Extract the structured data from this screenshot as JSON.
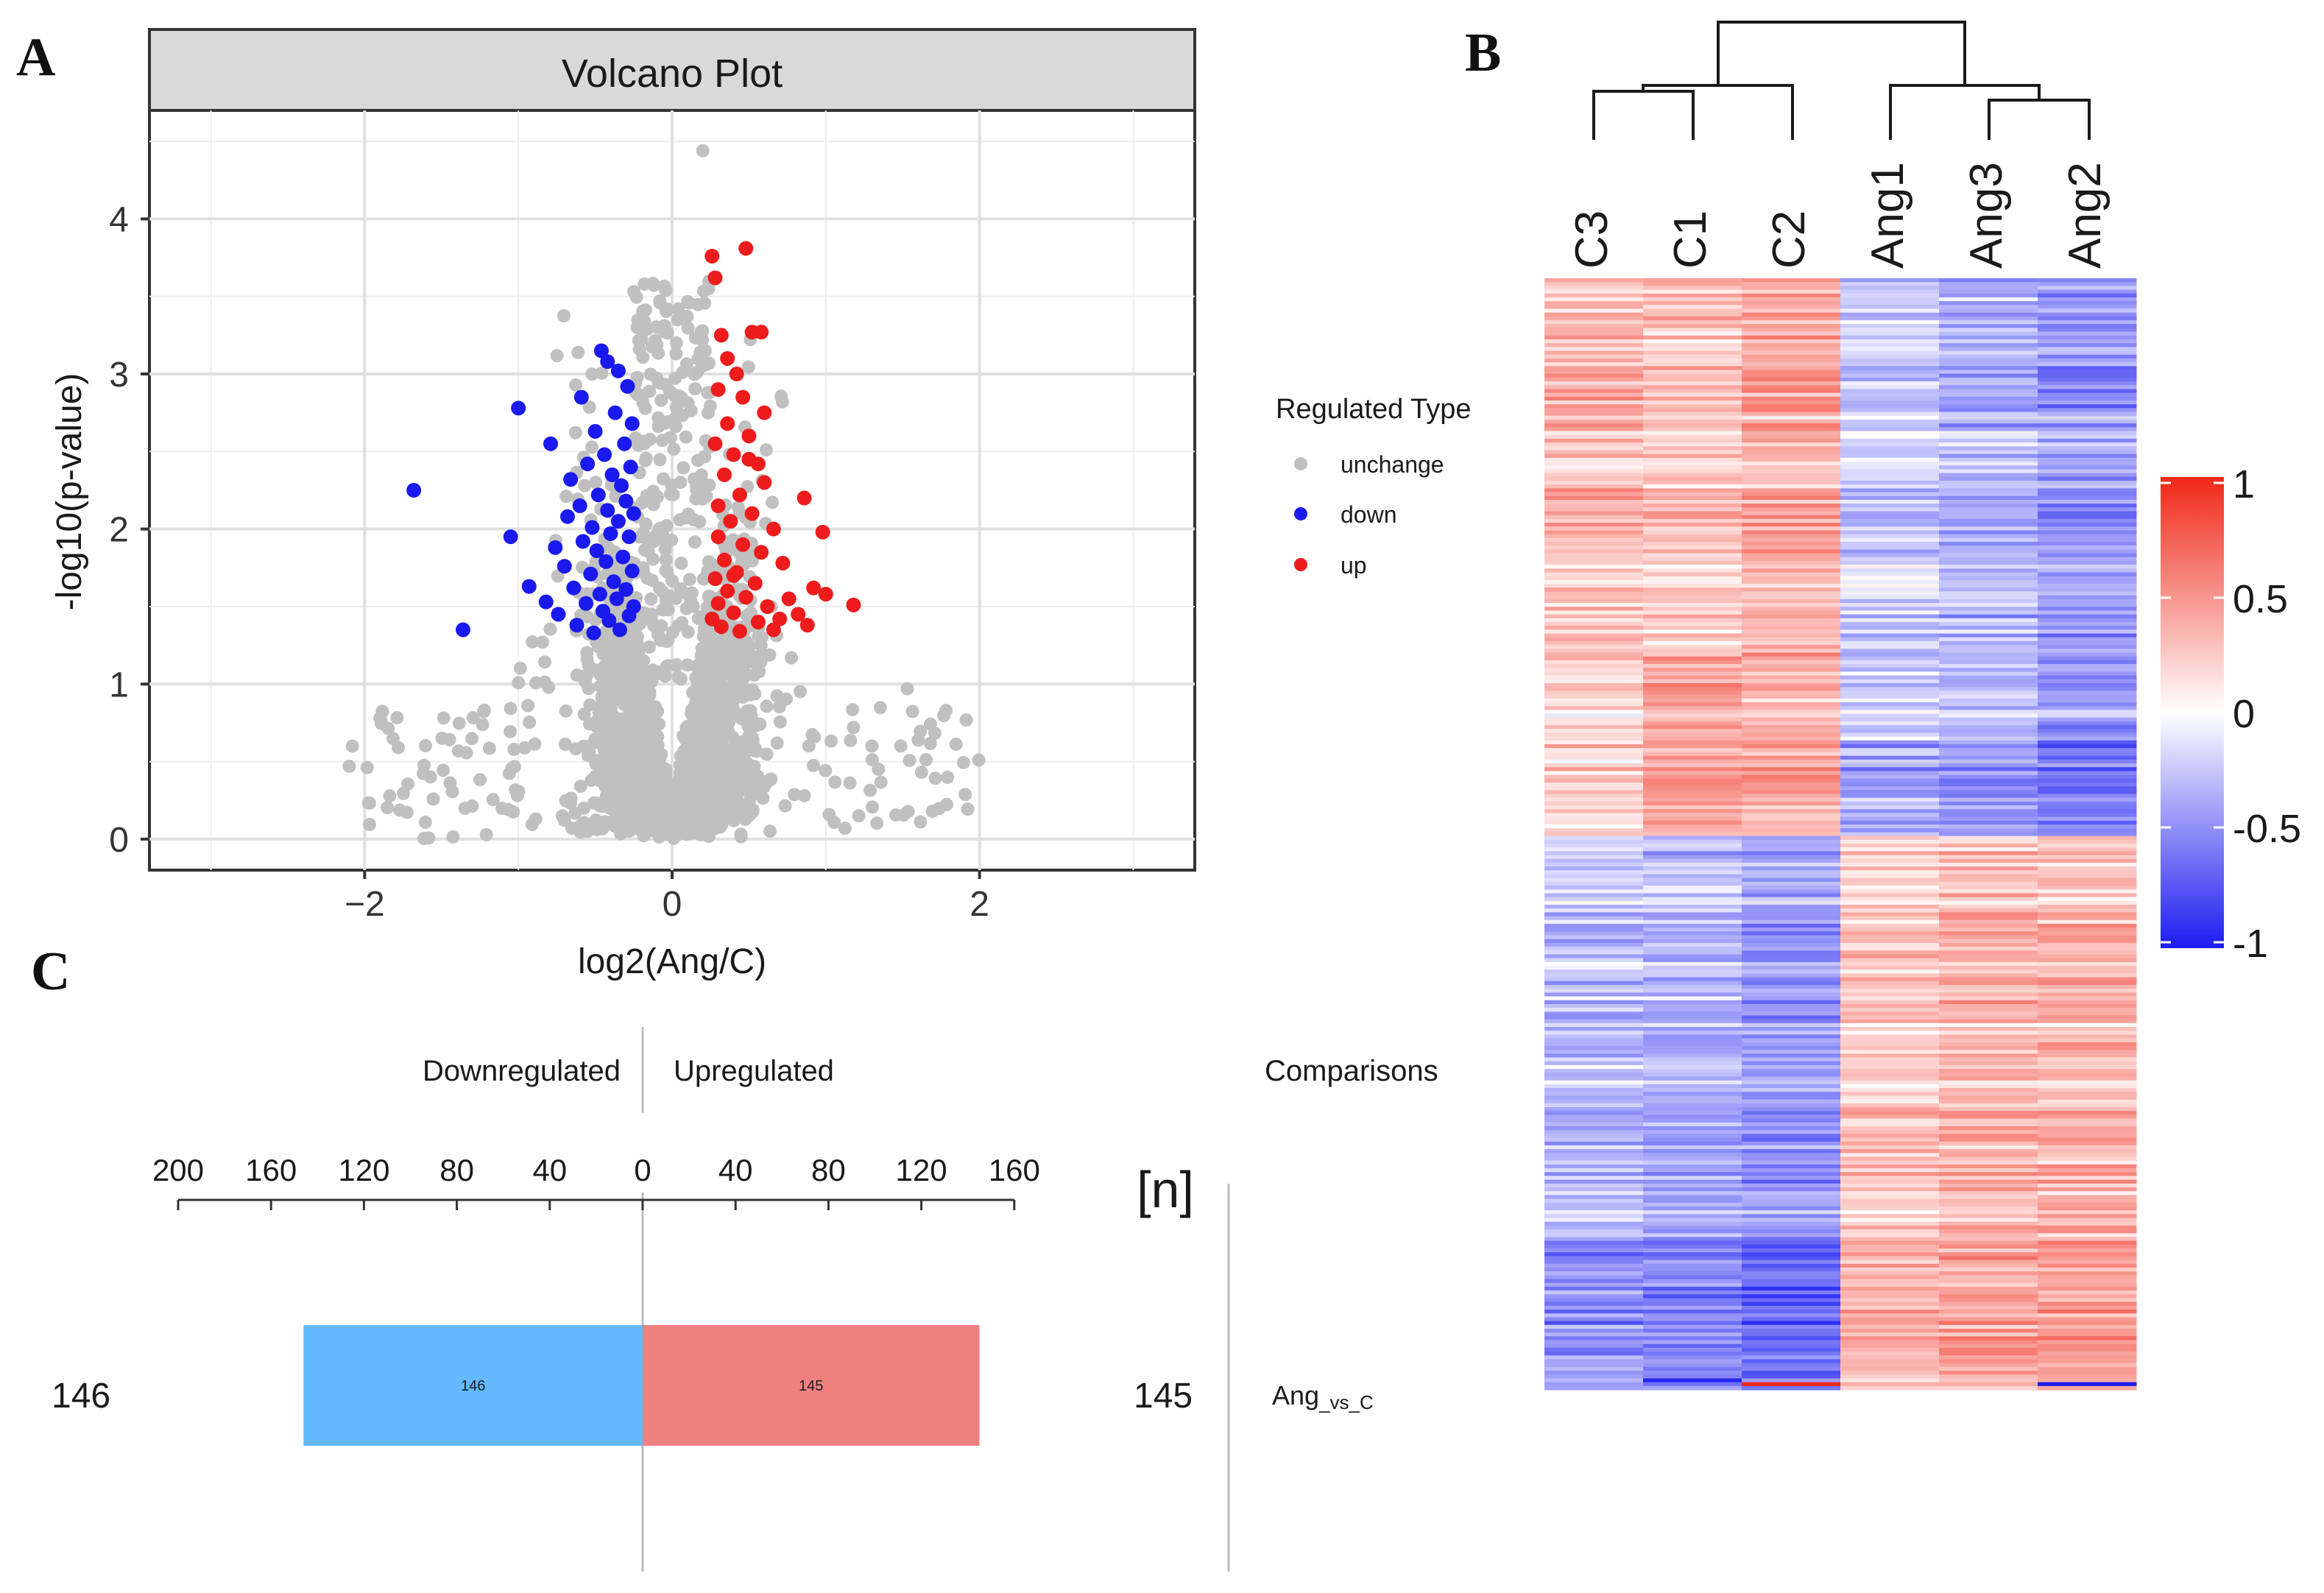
{
  "panels": {
    "a": "A",
    "b": "B",
    "c": "C"
  },
  "chart_data": [
    {
      "type": "scatter",
      "panel": "A",
      "title": "Volcano Plot",
      "xlabel": "log2(Ang/C)",
      "ylabel": "-log10(p-value)",
      "xlim": [
        -3.4,
        3.4
      ],
      "ylim": [
        -0.2,
        4.7
      ],
      "xticks": [
        -2,
        0,
        2
      ],
      "yticks": [
        0,
        1,
        2,
        3,
        4
      ],
      "legend": {
        "title": "Regulated Type",
        "placement": "right",
        "entries": [
          {
            "label": "unchange",
            "color": "#c0c0c0"
          },
          {
            "label": "down",
            "color": "#1a1aee"
          },
          {
            "label": "up",
            "color": "#ee1c1c"
          }
        ]
      },
      "series": [
        {
          "name": "down",
          "color": "#1a1aee",
          "points": [
            [
              -1.68,
              2.25
            ],
            [
              -1.36,
              1.35
            ],
            [
              -1.05,
              1.95
            ],
            [
              -1.0,
              2.78
            ],
            [
              -0.93,
              1.63
            ],
            [
              -0.82,
              1.53
            ],
            [
              -0.79,
              2.55
            ],
            [
              -0.76,
              1.88
            ],
            [
              -0.74,
              1.45
            ],
            [
              -0.7,
              1.76
            ],
            [
              -0.68,
              2.08
            ],
            [
              -0.66,
              2.32
            ],
            [
              -0.64,
              1.62
            ],
            [
              -0.62,
              1.38
            ],
            [
              -0.6,
              2.15
            ],
            [
              -0.59,
              2.85
            ],
            [
              -0.58,
              1.92
            ],
            [
              -0.56,
              1.52
            ],
            [
              -0.55,
              2.42
            ],
            [
              -0.53,
              1.71
            ],
            [
              -0.52,
              2.01
            ],
            [
              -0.51,
              1.33
            ],
            [
              -0.5,
              2.63
            ],
            [
              -0.49,
              1.86
            ],
            [
              -0.48,
              2.22
            ],
            [
              -0.47,
              1.58
            ],
            [
              -0.46,
              3.15
            ],
            [
              -0.45,
              1.47
            ],
            [
              -0.44,
              2.48
            ],
            [
              -0.43,
              1.79
            ],
            [
              -0.42,
              2.12
            ],
            [
              -0.42,
              3.08
            ],
            [
              -0.41,
              1.41
            ],
            [
              -0.4,
              1.97
            ],
            [
              -0.39,
              2.35
            ],
            [
              -0.38,
              1.66
            ],
            [
              -0.37,
              2.75
            ],
            [
              -0.36,
              1.55
            ],
            [
              -0.35,
              2.05
            ],
            [
              -0.35,
              3.02
            ],
            [
              -0.34,
              1.35
            ],
            [
              -0.33,
              2.28
            ],
            [
              -0.32,
              1.82
            ],
            [
              -0.31,
              2.55
            ],
            [
              -0.3,
              1.61
            ],
            [
              -0.3,
              2.18
            ],
            [
              -0.29,
              2.92
            ],
            [
              -0.28,
              1.44
            ],
            [
              -0.28,
              1.95
            ],
            [
              -0.27,
              2.4
            ],
            [
              -0.26,
              1.73
            ],
            [
              -0.26,
              2.68
            ],
            [
              -0.25,
              1.5
            ],
            [
              -0.25,
              2.1
            ]
          ]
        },
        {
          "name": "up",
          "color": "#ee1c1c",
          "points": [
            [
              0.26,
              3.76
            ],
            [
              0.28,
              3.62
            ],
            [
              0.48,
              3.81
            ],
            [
              0.32,
              3.25
            ],
            [
              0.52,
              3.27
            ],
            [
              0.58,
              3.27
            ],
            [
              0.42,
              3.0
            ],
            [
              0.3,
              2.9
            ],
            [
              0.46,
              2.85
            ],
            [
              0.36,
              2.68
            ],
            [
              0.5,
              2.6
            ],
            [
              0.28,
              2.55
            ],
            [
              0.4,
              2.48
            ],
            [
              0.56,
              2.42
            ],
            [
              0.34,
              2.35
            ],
            [
              0.6,
              2.3
            ],
            [
              0.44,
              2.22
            ],
            [
              0.3,
              2.15
            ],
            [
              0.52,
              2.1
            ],
            [
              0.38,
              2.05
            ],
            [
              0.66,
              2.0
            ],
            [
              0.3,
              1.95
            ],
            [
              0.46,
              1.9
            ],
            [
              0.58,
              1.85
            ],
            [
              0.34,
              1.8
            ],
            [
              0.72,
              1.78
            ],
            [
              0.42,
              1.72
            ],
            [
              0.28,
              1.68
            ],
            [
              0.54,
              1.65
            ],
            [
              0.36,
              1.6
            ],
            [
              0.48,
              1.56
            ],
            [
              0.3,
              1.52
            ],
            [
              0.62,
              1.5
            ],
            [
              0.4,
              1.46
            ],
            [
              0.26,
              1.42
            ],
            [
              0.56,
              1.4
            ],
            [
              0.32,
              1.37
            ],
            [
              0.44,
              1.34
            ],
            [
              0.6,
              2.75
            ],
            [
              0.86,
              2.2
            ],
            [
              0.98,
              1.98
            ],
            [
              0.92,
              1.62
            ],
            [
              1.18,
              1.51
            ],
            [
              1.0,
              1.58
            ],
            [
              0.82,
              1.45
            ],
            [
              0.76,
              1.55
            ],
            [
              0.7,
              1.42
            ],
            [
              0.88,
              1.38
            ],
            [
              0.66,
              1.35
            ],
            [
              0.36,
              3.1
            ],
            [
              0.5,
              2.45
            ],
            [
              0.4,
              1.7
            ]
          ]
        }
      ]
    },
    {
      "type": "heatmap",
      "panel": "B",
      "columns": [
        "C3",
        "C1",
        "C2",
        "Ang1",
        "Ang3",
        "Ang2"
      ],
      "dendrogram_order": [
        [
          "C3",
          "C1",
          "C2"
        ],
        [
          "Ang1",
          [
            "Ang3",
            "Ang2"
          ]
        ]
      ],
      "row_clusters": [
        "higher in C (upper block)",
        "higher in Ang (lower block)"
      ],
      "colorbar": {
        "ticks": [
          "1",
          "0.5",
          "0",
          "-0.5",
          "-1"
        ],
        "min": -1,
        "max": 1,
        "low_color": "#1c1cf0",
        "mid_color": "#ffffff",
        "high_color": "#f02818"
      }
    },
    {
      "type": "bar",
      "panel": "C",
      "orientation": "horizontal-diverging",
      "header_left": "Downregulated",
      "header_right": "Upregulated",
      "header_comparisons": "Comparisons",
      "n_label": "[n]",
      "axis_ticks": [
        "200",
        "160",
        "120",
        "80",
        "40",
        "0",
        "40",
        "80",
        "120",
        "160"
      ],
      "axis_values": [
        -200,
        -160,
        -120,
        -80,
        -40,
        0,
        40,
        80,
        120,
        160
      ],
      "categories": [
        "Ang_vs_C"
      ],
      "comparison_main": "Ang",
      "comparison_sub": "_vs_C",
      "down": {
        "value": 146,
        "label": "146",
        "count_label": "146",
        "color": "#63b9fc"
      },
      "up": {
        "value": 145,
        "label": "145",
        "count_label": "145",
        "color": "#f07f7f"
      }
    }
  ]
}
